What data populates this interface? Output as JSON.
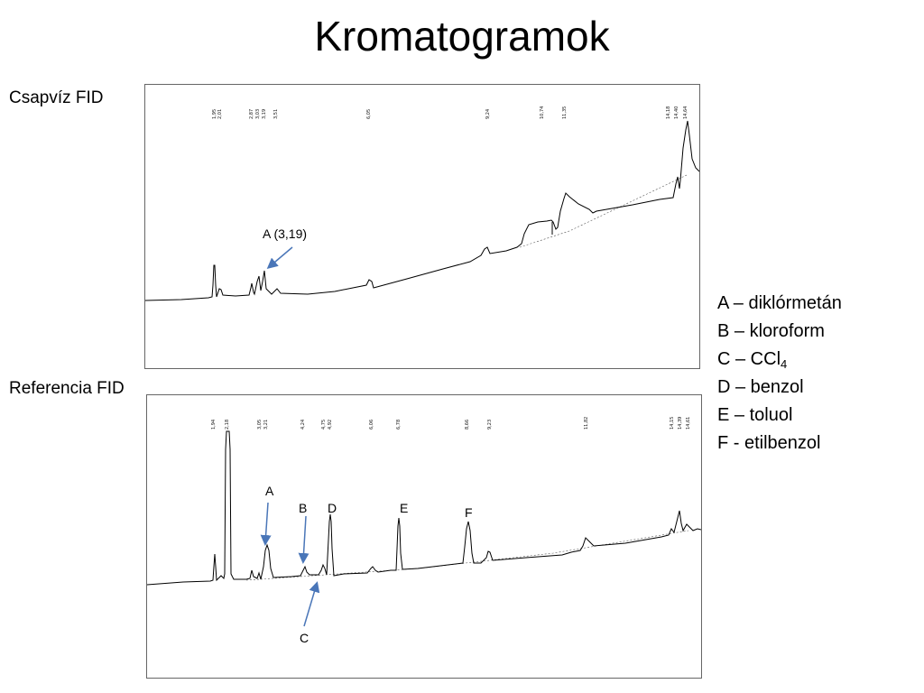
{
  "title": "Kromatogramok",
  "panels": {
    "top": {
      "label": "Csapvíz FID",
      "retention_times": [
        "1,95",
        "2,01",
        "2,87",
        "3,03",
        "3,19",
        "3,51",
        "6,05",
        "9,24",
        "10,74",
        "11,35",
        "14,18",
        "14,40",
        "14,64"
      ],
      "annotation": "A (3,19)"
    },
    "bottom": {
      "label": "Referencia FID",
      "retention_times": [
        "1,94",
        "2,18",
        "3,05",
        "3,21",
        "4,24",
        "4,75",
        "4,92",
        "6,06",
        "6,78",
        "8,66",
        "9,23",
        "11,82",
        "14,15",
        "14,39",
        "14,61"
      ],
      "peak_labels": [
        "A",
        "B",
        "D",
        "E",
        "F",
        "C"
      ]
    }
  },
  "legend": {
    "a": "A – diklórmetán",
    "b": "B – kloroform",
    "c_prefix": "C – CCl",
    "c_sub": "4",
    "d": "D – benzol",
    "e": "E – toluol",
    "f": "F - etilbenzol"
  },
  "colors": {
    "arrow": "#4a76b8",
    "trace": "#000000"
  }
}
